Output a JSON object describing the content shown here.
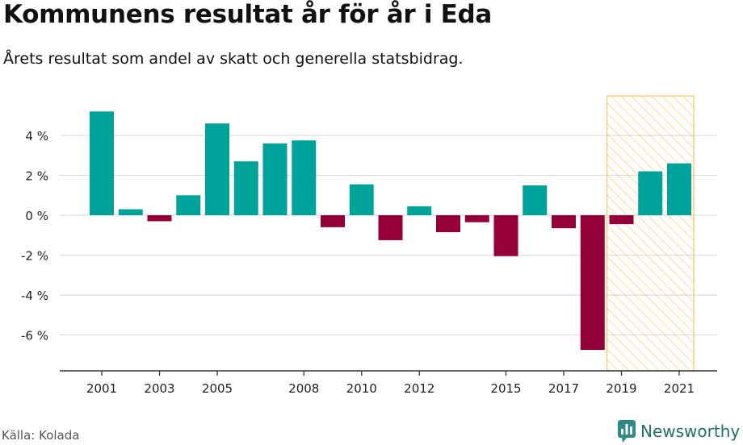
{
  "title": "Kommunens resultat år för år i Eda",
  "subtitle": "Årets resultat som andel av skatt och generella statsbidrag.",
  "source": "Källa: Kolada",
  "brand": {
    "name": "Newsworthy",
    "icon": "newsworthy-logo-icon"
  },
  "colors": {
    "positive": "#00a39a",
    "negative": "#950039",
    "highlight": "#f5c96a",
    "grid": "#dddddd",
    "axis": "#333333"
  },
  "chart_data": {
    "type": "bar",
    "title": "Kommunens resultat år för år i Eda",
    "subtitle": "Årets resultat som andel av skatt och generella statsbidrag.",
    "xlabel": "",
    "ylabel": "",
    "unit": "%",
    "categories": [
      2001,
      2002,
      2003,
      2004,
      2005,
      2006,
      2007,
      2008,
      2009,
      2010,
      2011,
      2012,
      2013,
      2014,
      2015,
      2016,
      2017,
      2018,
      2019,
      2020,
      2021
    ],
    "values": [
      5.2,
      0.3,
      -0.3,
      1.0,
      4.6,
      2.7,
      3.6,
      3.75,
      -0.6,
      1.55,
      -1.25,
      0.45,
      -0.85,
      -0.35,
      -2.05,
      1.5,
      -0.65,
      -6.75,
      -0.45,
      2.2,
      2.6
    ],
    "xticks": [
      2001,
      2003,
      2005,
      2008,
      2010,
      2012,
      2015,
      2017,
      2019,
      2021
    ],
    "yticks": [
      -6,
      -4,
      -2,
      0,
      2,
      4
    ],
    "ytick_labels": [
      "-6 %",
      "-4 %",
      "-2 %",
      "0 %",
      "2 %",
      "4 %"
    ],
    "ylim": [
      -7.8,
      6.0
    ],
    "highlight_range": [
      2019,
      2021
    ],
    "grid": true,
    "legend": "none"
  }
}
